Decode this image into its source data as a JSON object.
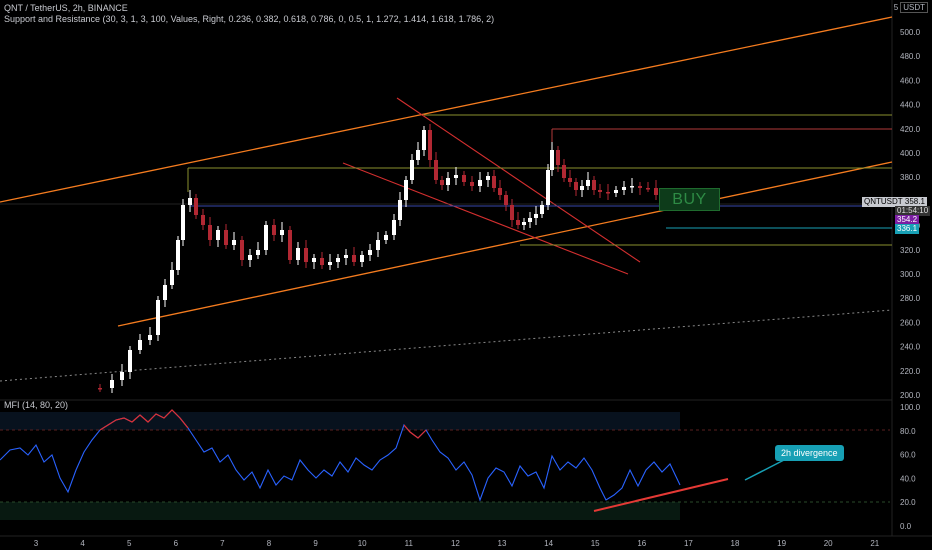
{
  "header": {
    "symbol_line": "QNT / TetherUS, 2h, BINANCE",
    "indicator_line": "Support and Resistance (30, 3, 1, 3, 100, Values, Right, 0.236, 0.382, 0.618, 0.786, 0, 0.5, 1, 1.272, 1.414, 1.618, 1.786, 2)"
  },
  "currency": {
    "top_value": "5",
    "code": "USDT"
  },
  "price_axis": {
    "ticks": [
      "500.0",
      "480.0",
      "460.0",
      "440.0",
      "420.0",
      "400.0",
      "380.0",
      "360.0",
      "340.0",
      "320.0",
      "300.0",
      "280.0",
      "260.0",
      "240.0",
      "220.0",
      "200.0"
    ],
    "price_tag_symbol": "QNTUSDT",
    "price_tag_value": "358.1",
    "countdown": "01:54:10",
    "tag_purple": "354.2",
    "tag_cyan": "336.1"
  },
  "mfi": {
    "label": "MFI (14, 80, 20)",
    "ticks": [
      "100.0",
      "80.0",
      "60.0",
      "40.0",
      "20.0",
      "0.0"
    ]
  },
  "time_axis": {
    "ticks": [
      "3",
      "4",
      "5",
      "6",
      "7",
      "8",
      "9",
      "10",
      "11",
      "12",
      "13",
      "14",
      "15",
      "16",
      "17",
      "18",
      "19",
      "20",
      "21"
    ]
  },
  "annotations": {
    "buy": "BUY",
    "divergence": "2h divergence"
  },
  "colors": {
    "up": "#ffffff",
    "down": "#b22833",
    "channel": "#f57c1f",
    "mfi": "#2962ff",
    "sr": "#8a8f2e",
    "wedge": "#d32f2f"
  }
}
